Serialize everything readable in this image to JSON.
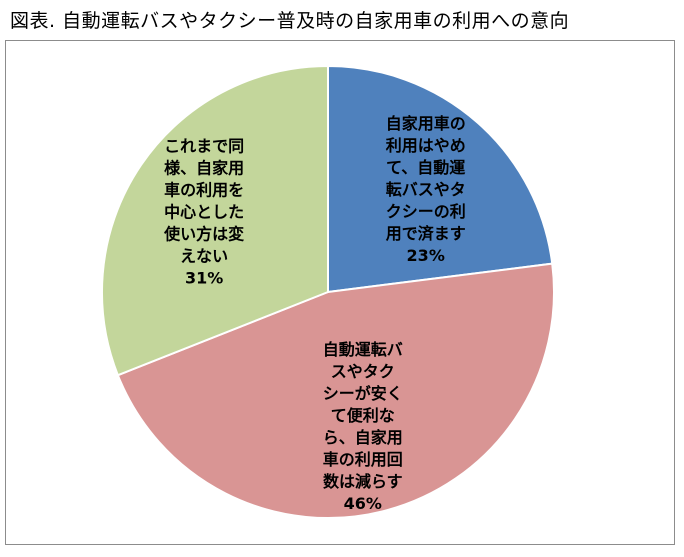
{
  "figure_caption": "図表. 自動運転バスやタクシー普及時の自家用車の利用への意向",
  "chart_data": {
    "type": "pie",
    "title": "",
    "slices": [
      {
        "label_lines": [
          "自家用車の",
          "利用はやめ",
          "て、自動運",
          "転バスやタ",
          "クシーの利",
          "用で済ます"
        ],
        "label": "自家用車の利用はやめて、自動運転バスやタクシーの利用で済ます",
        "value": 23,
        "value_text": "23%",
        "color": "#4f81bd"
      },
      {
        "label_lines": [
          "自動運転バ",
          "スやタク",
          "シーが安く",
          "て便利な",
          "ら、自家用",
          "車の利用回",
          "数は減らす"
        ],
        "label": "自動運転バスやタクシーが安くて便利なら、自家用車の利用回数は減らす",
        "value": 46,
        "value_text": "46%",
        "color": "#d99594"
      },
      {
        "label_lines": [
          "これまで同",
          "様、自家用",
          "車の利用を",
          "中心とした",
          "使い方は変",
          "えない"
        ],
        "label": "これまで同様、自家用車の利用を中心とした使い方は変えない",
        "value": 31,
        "value_text": "31%",
        "color": "#c3d69b"
      }
    ],
    "start_position": "12 o'clock",
    "direction": "clockwise",
    "legend": "none",
    "slice_border_color": "#ffffff"
  }
}
